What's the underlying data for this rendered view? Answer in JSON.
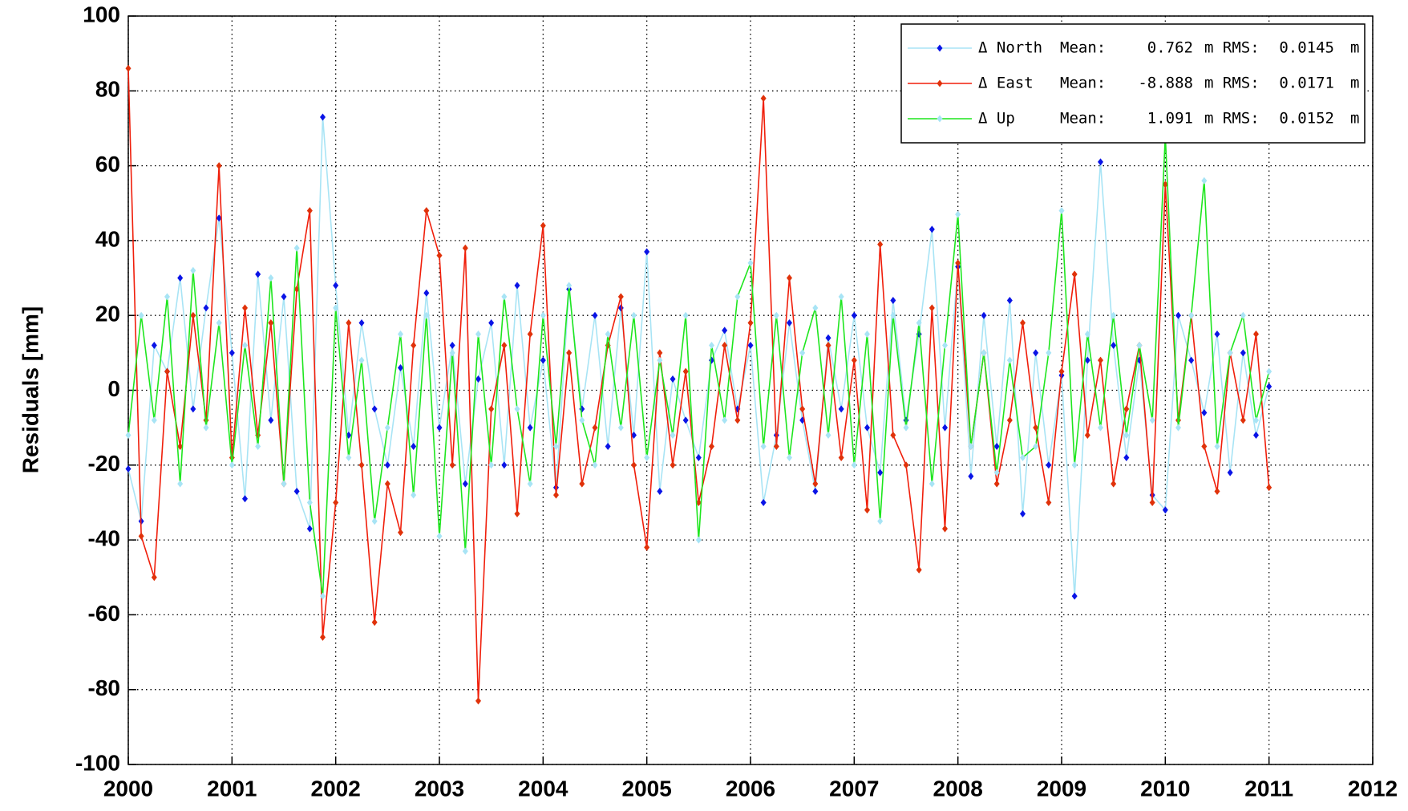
{
  "chart_data": {
    "type": "line",
    "ylabel": "Residuals [mm]",
    "xlim": [
      2000,
      2012
    ],
    "xticks": [
      2000,
      2001,
      2002,
      2003,
      2004,
      2005,
      2006,
      2007,
      2008,
      2009,
      2010,
      2011,
      2012
    ],
    "ylim": [
      -100,
      100
    ],
    "yticks": [
      -100,
      -80,
      -60,
      -40,
      -20,
      0,
      20,
      40,
      60,
      80,
      100
    ],
    "grid": true,
    "legend_position": "upper right",
    "legend_labels": {
      "mean": "Mean:",
      "rms": "m RMS:",
      "unit": "m"
    },
    "x": [
      2000,
      2000.125,
      2000.25,
      2000.375,
      2000.5,
      2000.625,
      2000.75,
      2000.875,
      2001,
      2001.125,
      2001.25,
      2001.375,
      2001.5,
      2001.625,
      2001.75,
      2001.875,
      2002,
      2002.125,
      2002.25,
      2002.375,
      2002.5,
      2002.625,
      2002.75,
      2002.875,
      2003,
      2003.125,
      2003.25,
      2003.375,
      2003.5,
      2003.625,
      2003.75,
      2003.875,
      2004,
      2004.125,
      2004.25,
      2004.375,
      2004.5,
      2004.625,
      2004.75,
      2004.875,
      2005,
      2005.125,
      2005.25,
      2005.375,
      2005.5,
      2005.625,
      2005.75,
      2005.875,
      2006,
      2006.125,
      2006.25,
      2006.375,
      2006.5,
      2006.625,
      2006.75,
      2006.875,
      2007,
      2007.125,
      2007.25,
      2007.375,
      2007.5,
      2007.625,
      2007.75,
      2007.875,
      2008,
      2008.125,
      2008.25,
      2008.375,
      2008.5,
      2008.625,
      2008.75,
      2008.875,
      2009,
      2009.125,
      2009.25,
      2009.375,
      2009.5,
      2009.625,
      2009.75,
      2009.875,
      2010,
      2010.125,
      2010.25,
      2010.375,
      2010.5,
      2010.625,
      2010.75,
      2010.875,
      2011
    ],
    "series": [
      {
        "name": "Δ North",
        "color": "#a8e4f5",
        "marker_color": "#0a14e6",
        "mean": 0.762,
        "rms": 0.0145,
        "values": [
          -21,
          -35,
          12,
          5,
          30,
          -5,
          22,
          46,
          10,
          -29,
          31,
          -8,
          25,
          -27,
          -37,
          73,
          28,
          -12,
          18,
          -5,
          -20,
          6,
          -15,
          26,
          -10,
          12,
          -25,
          3,
          18,
          -20,
          28,
          -10,
          8,
          -26,
          27,
          -5,
          20,
          -15,
          22,
          -12,
          37,
          -27,
          3,
          -8,
          -18,
          8,
          16,
          -5,
          12,
          -30,
          -12,
          18,
          -8,
          -27,
          14,
          -5,
          20,
          -10,
          -22,
          24,
          -8,
          15,
          43,
          -10,
          33,
          -23,
          20,
          -15,
          24,
          -33,
          10,
          -20,
          4,
          -55,
          8,
          61,
          12,
          -18,
          8,
          -28,
          -32,
          20,
          8,
          -6,
          15,
          -22,
          10,
          -12,
          1
        ]
      },
      {
        "name": "Δ East",
        "color": "#f01e0a",
        "marker_color": "#e0320a",
        "mean": -8.888,
        "rms": 0.0171,
        "values": [
          86,
          -39,
          -50,
          5,
          -15,
          20,
          -8,
          60,
          -18,
          22,
          -12,
          18,
          -25,
          27,
          48,
          -66,
          -30,
          18,
          -20,
          -62,
          -25,
          -38,
          12,
          48,
          36,
          -20,
          38,
          -83,
          -5,
          12,
          -33,
          15,
          44,
          -28,
          10,
          -25,
          -10,
          12,
          25,
          -20,
          -42,
          10,
          -20,
          5,
          -30,
          -15,
          12,
          -8,
          18,
          78,
          -15,
          30,
          -5,
          -25,
          12,
          -18,
          8,
          -32,
          39,
          -12,
          -20,
          -48,
          22,
          -37,
          34,
          -15,
          10,
          -25,
          -8,
          18,
          -10,
          -30,
          5,
          31,
          -12,
          8,
          -25,
          -5,
          12,
          -30,
          55,
          -8,
          20,
          -15,
          -27,
          10,
          -8,
          15,
          -26
        ]
      },
      {
        "name": "Δ Up",
        "color": "#1ee61e",
        "marker_color": "#a8e4f5",
        "mean": 1.091,
        "rms": 0.0152,
        "values": [
          -12,
          20,
          -8,
          25,
          -25,
          32,
          -10,
          18,
          -20,
          12,
          -15,
          30,
          -25,
          38,
          -30,
          -55,
          22,
          -18,
          8,
          -35,
          -10,
          15,
          -28,
          20,
          -39,
          10,
          -43,
          15,
          -20,
          25,
          -5,
          -25,
          20,
          -15,
          28,
          -8,
          -20,
          15,
          -10,
          20,
          -18,
          8,
          -12,
          20,
          -40,
          12,
          -8,
          25,
          34,
          -15,
          20,
          -18,
          10,
          22,
          -12,
          25,
          -20,
          15,
          -35,
          20,
          -10,
          18,
          -25,
          12,
          47,
          -15,
          10,
          -22,
          8,
          -18,
          -15,
          10,
          48,
          -20,
          15,
          -10,
          20,
          -12,
          12,
          -8,
          68,
          -10,
          20,
          56,
          -15,
          10,
          20,
          -8,
          5
        ]
      }
    ]
  }
}
